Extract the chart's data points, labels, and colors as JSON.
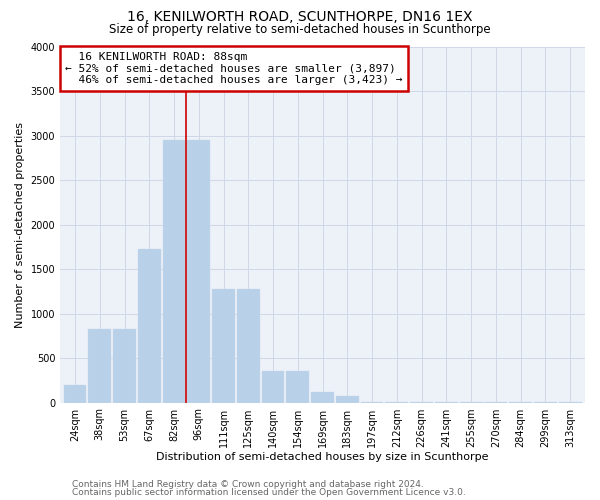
{
  "title": "16, KENILWORTH ROAD, SCUNTHORPE, DN16 1EX",
  "subtitle": "Size of property relative to semi-detached houses in Scunthorpe",
  "xlabel": "Distribution of semi-detached houses by size in Scunthorpe",
  "ylabel": "Number of semi-detached properties",
  "footnote1": "Contains HM Land Registry data © Crown copyright and database right 2024.",
  "footnote2": "Contains public sector information licensed under the Open Government Licence v3.0.",
  "categories": [
    "24sqm",
    "38sqm",
    "53sqm",
    "67sqm",
    "82sqm",
    "96sqm",
    "111sqm",
    "125sqm",
    "140sqm",
    "154sqm",
    "169sqm",
    "183sqm",
    "197sqm",
    "212sqm",
    "226sqm",
    "241sqm",
    "255sqm",
    "270sqm",
    "284sqm",
    "299sqm",
    "313sqm"
  ],
  "values": [
    200,
    830,
    830,
    1720,
    2950,
    2950,
    1280,
    1280,
    350,
    350,
    120,
    75,
    10,
    5,
    3,
    2,
    2,
    1,
    1,
    1,
    1
  ],
  "bar_color": "#b8d0e8",
  "vline_after_index": 4,
  "property_size": "88sqm",
  "pct_smaller": 52,
  "n_smaller": 3897,
  "pct_larger": 46,
  "n_larger": 3423,
  "annotation_label": "16 KENILWORTH ROAD: 88sqm",
  "vline_color": "#cc0000",
  "box_color": "#cc0000",
  "ylim": [
    0,
    4000
  ],
  "yticks": [
    0,
    500,
    1000,
    1500,
    2000,
    2500,
    3000,
    3500,
    4000
  ],
  "title_fontsize": 10,
  "subtitle_fontsize": 8.5,
  "xlabel_fontsize": 8,
  "ylabel_fontsize": 8,
  "tick_fontsize": 7,
  "footnote_fontsize": 6.5,
  "ann_fontsize": 8
}
